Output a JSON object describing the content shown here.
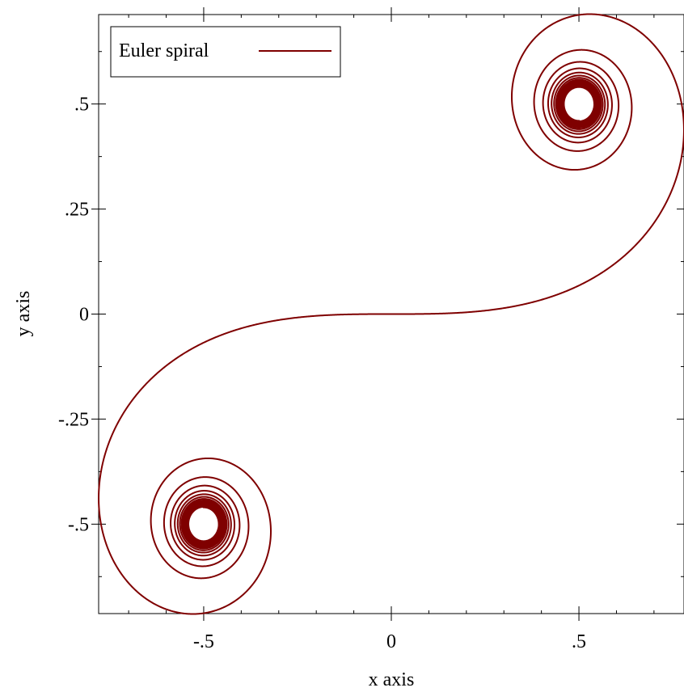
{
  "chart_data": {
    "type": "line",
    "title": "",
    "xlabel": "x axis",
    "ylabel": "y axis",
    "xlim": [
      -0.78,
      0.78
    ],
    "ylim": [
      -0.713,
      0.713
    ],
    "x_ticks": [
      {
        "value": -0.5,
        "label": "-.5"
      },
      {
        "value": 0,
        "label": "0"
      },
      {
        "value": 0.5,
        "label": ".5"
      }
    ],
    "y_ticks": [
      {
        "value": 0.5,
        "label": ".5"
      },
      {
        "value": 0.25,
        "label": ".25"
      },
      {
        "value": 0,
        "label": "0"
      },
      {
        "value": -0.25,
        "label": "-.25"
      },
      {
        "value": -0.5,
        "label": "-.5"
      }
    ],
    "grid": false,
    "legend": {
      "position": "top-left"
    },
    "series": [
      {
        "name": "Euler spiral",
        "color": "#7f0000",
        "function": "Fresnel integrals: x = C(t), y = S(t)",
        "t_range": [
          -8,
          8
        ]
      }
    ]
  }
}
